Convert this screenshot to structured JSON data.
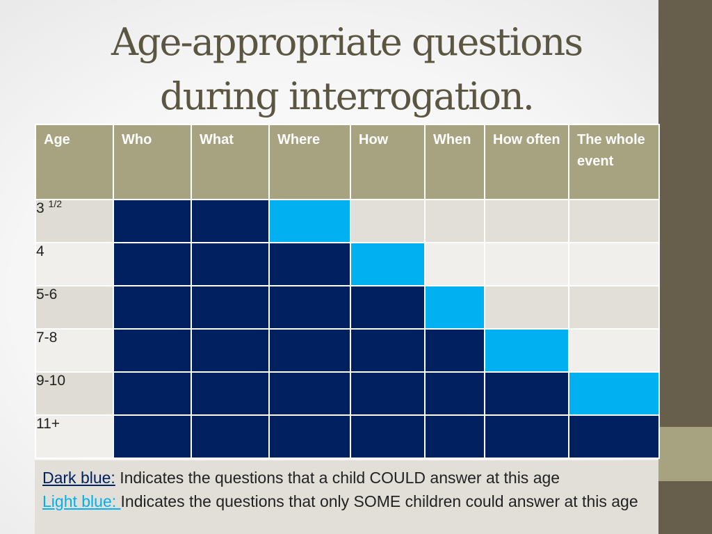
{
  "title": {
    "line1": "Age-appropriate questions",
    "line2": "during interrogation."
  },
  "colors": {
    "dark_blue": "#002060",
    "light_blue": "#00b0f0",
    "header_bg": "#a7a381",
    "side_bar": "#675e4c"
  },
  "table": {
    "headers": [
      "Age",
      "Who",
      "What",
      "Where",
      "How",
      "When",
      "How often",
      "The whole event"
    ],
    "rows": [
      {
        "age": "3",
        "age_sup": "1/2",
        "cells": [
          "dark",
          "dark",
          "light",
          "empty",
          "empty",
          "empty",
          "empty"
        ]
      },
      {
        "age": "4",
        "age_sup": "",
        "cells": [
          "dark",
          "dark",
          "dark",
          "light",
          "empty",
          "empty",
          "empty"
        ]
      },
      {
        "age": "5-6",
        "age_sup": "",
        "cells": [
          "dark",
          "dark",
          "dark",
          "dark",
          "light",
          "empty",
          "empty"
        ]
      },
      {
        "age": "7-8",
        "age_sup": "",
        "cells": [
          "dark",
          "dark",
          "dark",
          "dark",
          "dark",
          "light",
          "empty"
        ]
      },
      {
        "age": "9-10",
        "age_sup": "",
        "cells": [
          "dark",
          "dark",
          "dark",
          "dark",
          "dark",
          "dark",
          "light"
        ]
      },
      {
        "age": "11+",
        "age_sup": "",
        "cells": [
          "dark",
          "dark",
          "dark",
          "dark",
          "dark",
          "dark",
          "dark"
        ]
      }
    ]
  },
  "legend": {
    "dark_key": "Dark blue:",
    "dark_text": " Indicates the questions that a child COULD answer at this age",
    "light_key": "Light blue: ",
    "light_text": "Indicates the questions that only SOME children could answer at this age"
  }
}
